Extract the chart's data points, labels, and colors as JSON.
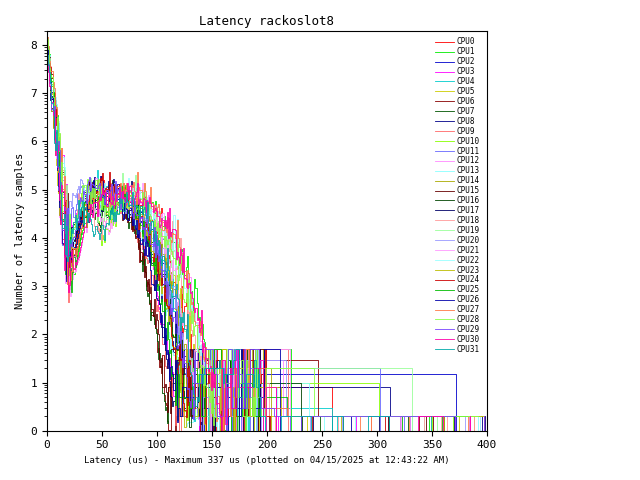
{
  "title": "Latency rackoslot8",
  "xlabel": "Latency (us) - Maximum 337 us (plotted on 04/15/2025 at 12:43:22 AM)",
  "ylabel": "Number of latency samples",
  "xlim": [
    0,
    400
  ],
  "ylim_log": [
    1,
    200000000.0
  ],
  "cpu_colors": [
    "#ff0000",
    "#00ee00",
    "#0000cc",
    "#ff00ff",
    "#00cccc",
    "#cccc00",
    "#880000",
    "#005500",
    "#000088",
    "#ff6666",
    "#88ff00",
    "#6666ff",
    "#ff88ff",
    "#88ffff",
    "#aaaa00",
    "#660000",
    "#004400",
    "#000066",
    "#ff9999",
    "#99ff99",
    "#9999ff",
    "#ff99ff",
    "#99ffff",
    "#bbbb00",
    "#cc0000",
    "#00bb00",
    "#0000aa",
    "#ff7744",
    "#88ff44",
    "#7744ff",
    "#ff00aa",
    "#00aaaa"
  ]
}
